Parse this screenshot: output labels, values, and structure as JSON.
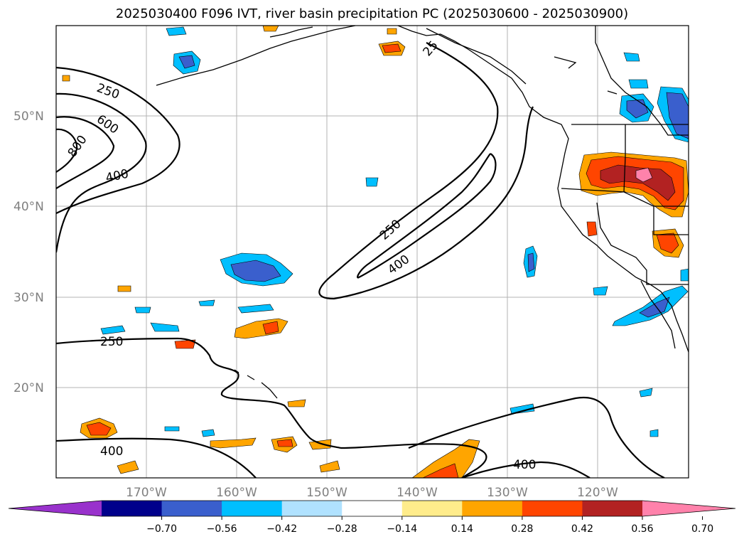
{
  "title": "2025030400 F096 IVT, river basin precipitation PC (2025030600 - 2025030900)",
  "lat_labels": [
    "50°N",
    "40°N",
    "30°N",
    "20°N"
  ],
  "lon_labels": [
    "170°W",
    "160°W",
    "150°W",
    "140°W",
    "130°W",
    "120°W"
  ],
  "ivt_contour_labels": [
    "250",
    "600",
    "800",
    "400",
    "25",
    "250",
    "400",
    "250",
    "400",
    "400"
  ],
  "colorbar": {
    "ticks": [
      "−0.70",
      "−0.56",
      "−0.42",
      "−0.28",
      "−0.14",
      "0.14",
      "0.28",
      "0.42",
      "0.56",
      "0.70"
    ],
    "colors": [
      "#9932cc",
      "#00008b",
      "#3a5fcd",
      "#00bfff",
      "#b0e2ff",
      "#ffffff",
      "#ffec8b",
      "#ffa500",
      "#ff4500",
      "#b22222",
      "#ff82ab"
    ]
  }
}
